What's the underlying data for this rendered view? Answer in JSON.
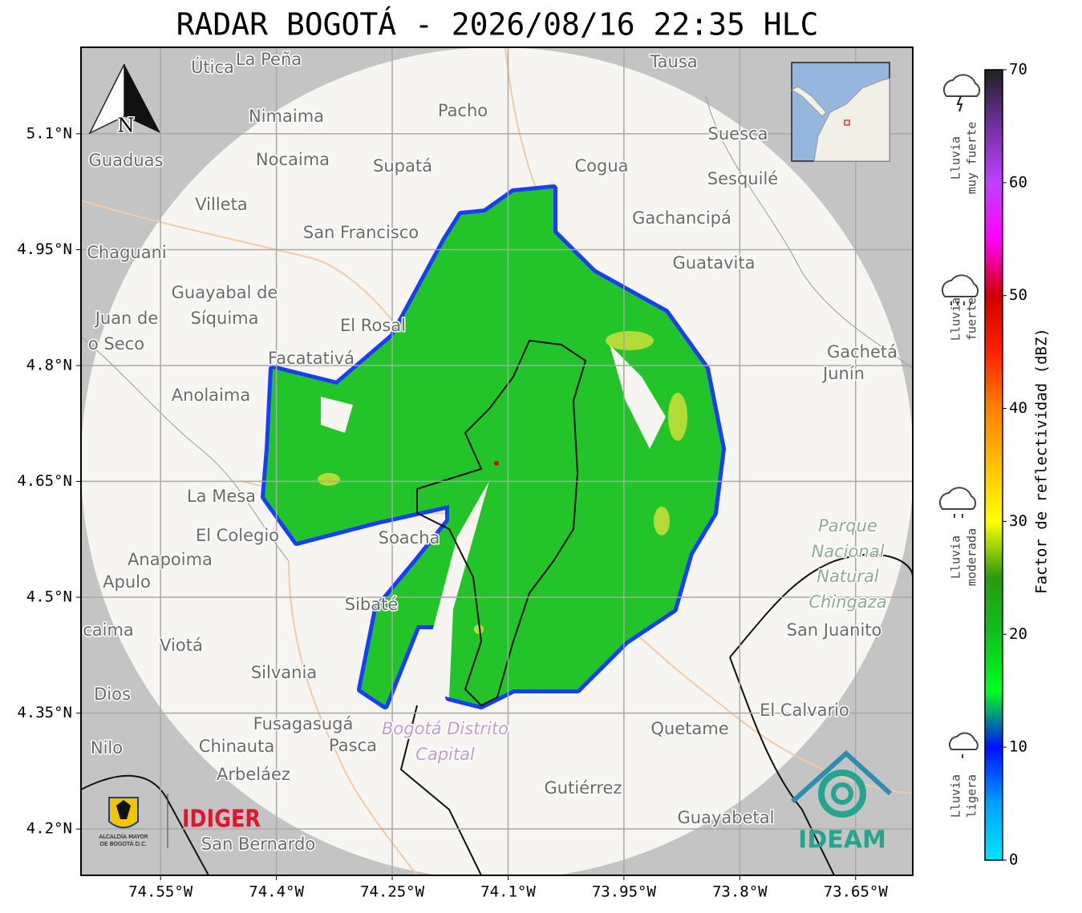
{
  "title": "RADAR BOGOTÁ - 2026/08/16 22:35 HLC",
  "map": {
    "lon_range": [
      -74.653,
      -73.576
    ],
    "lat_range": [
      4.14,
      5.212
    ],
    "lon_ticks": [
      {
        "value": -74.55,
        "label": "74.55°W"
      },
      {
        "value": -74.4,
        "label": "74.4°W"
      },
      {
        "value": -74.25,
        "label": "74.25°W"
      },
      {
        "value": -74.1,
        "label": "74.1°W"
      },
      {
        "value": -73.95,
        "label": "73.95°W"
      },
      {
        "value": -73.8,
        "label": "73.8°W"
      },
      {
        "value": -73.65,
        "label": "73.65°W"
      }
    ],
    "lat_ticks": [
      {
        "value": 5.1,
        "label": "5.1°N"
      },
      {
        "value": 4.95,
        "label": "4.95°N"
      },
      {
        "value": 4.8,
        "label": "4.8°N"
      },
      {
        "value": 4.65,
        "label": "4.65°N"
      },
      {
        "value": 4.5,
        "label": "4.5°N"
      },
      {
        "value": 4.35,
        "label": "4.35°N"
      },
      {
        "value": 4.2,
        "label": "4.2°N"
      }
    ],
    "grid": true,
    "north_label": "N",
    "places": [
      "Útica",
      "La Peña",
      "Tausa",
      "Pacho",
      "Nimaima",
      "Guaduas",
      "Nocaima",
      "Supatá",
      "Cogua",
      "Suesca",
      "Sesquilé",
      "Villeta",
      "Gachancipá",
      "San Francisco",
      "Chaguani",
      "Guatavita",
      "Guayabal de",
      "Síquima",
      "Juan de",
      "o Seco",
      "El Rosal",
      "Facatativá",
      "Gachetá",
      "Junín",
      "Anolaima",
      "La Mesa",
      "El Colegio",
      "Soacha",
      "Anapoima",
      "Apulo",
      "Sibaté",
      "San Juanito",
      "caima",
      "Viotá",
      "Silvania",
      "Dios",
      "El Calvario",
      "Fusagasugá",
      "Quetame",
      "Nilo",
      "Chinauta",
      "Pasca",
      "Arbeláez",
      "Gutiérrez",
      "Guayabetal",
      "San Bernardo",
      "Parque",
      "Nacional",
      "Natural",
      "Chingaza",
      "Bogotá Distrito",
      "Capital"
    ]
  },
  "colorbar": {
    "label": "Factor de reflectividad (dBZ)",
    "range": [
      0,
      70
    ],
    "ticks": [
      0,
      10,
      20,
      30,
      40,
      50,
      60,
      70
    ],
    "colors": [
      "#00e8f8",
      "#00a0ff",
      "#0010ff",
      "#00ff20",
      "#10c020",
      "#2a9a10",
      "#ffff00",
      "#ffc000",
      "#ff8000",
      "#ff2000",
      "#d00000",
      "#ff00ff",
      "#c040ff",
      "#7030a0",
      "#202020"
    ]
  },
  "rain_levels": [
    [
      "Lluvia",
      "muy fuerte"
    ],
    [
      "Lluvia",
      "fuerte"
    ],
    [
      "Lluvia",
      "moderada"
    ],
    [
      "Lluvia",
      "ligera"
    ]
  ],
  "logos": {
    "alcaldia": [
      "ALCALDÍA MAYOR",
      "DE BOGOTÁ D.C."
    ],
    "idiger": "IDIGER",
    "ideam": "IDEAM"
  }
}
